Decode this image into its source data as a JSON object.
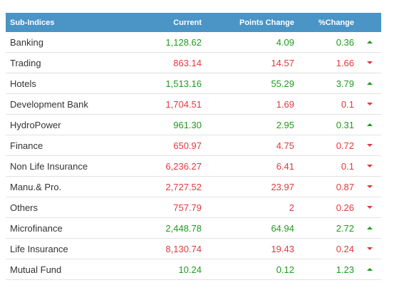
{
  "table": {
    "header": [
      "Sub-Indices",
      "Current",
      "Points Change",
      "%Change"
    ],
    "rows": [
      {
        "cells": [
          "Banking",
          "1,128.62",
          "4.09",
          "0.36"
        ],
        "direction": "up"
      },
      {
        "cells": [
          "Trading",
          "863.14",
          "14.57",
          "1.66"
        ],
        "direction": "down"
      },
      {
        "cells": [
          "Hotels",
          "1,513.16",
          "55.29",
          "3.79"
        ],
        "direction": "up"
      },
      {
        "cells": [
          "Development Bank",
          "1,704.51",
          "1.69",
          "0.1"
        ],
        "direction": "down"
      },
      {
        "cells": [
          "HydroPower",
          "961.30",
          "2.95",
          "0.31"
        ],
        "direction": "up"
      },
      {
        "cells": [
          "Finance",
          "650.97",
          "4.75",
          "0.72"
        ],
        "direction": "down"
      },
      {
        "cells": [
          "Non Life Insurance",
          "6,236.27",
          "6.41",
          "0.1"
        ],
        "direction": "down"
      },
      {
        "cells": [
          "Manu.& Pro.",
          "2,727.52",
          "23.97",
          "0.87"
        ],
        "direction": "down"
      },
      {
        "cells": [
          "Others",
          "757.79",
          "2",
          "0.26"
        ],
        "direction": "down"
      },
      {
        "cells": [
          "Microfinance",
          "2,448.78",
          "64.94",
          "2.72"
        ],
        "direction": "up"
      },
      {
        "cells": [
          "Life Insurance",
          "8,130.74",
          "19.43",
          "0.24"
        ],
        "direction": "down"
      },
      {
        "cells": [
          "Mutual Fund",
          "10.24",
          "0.12",
          "1.23"
        ],
        "direction": "up"
      }
    ]
  }
}
